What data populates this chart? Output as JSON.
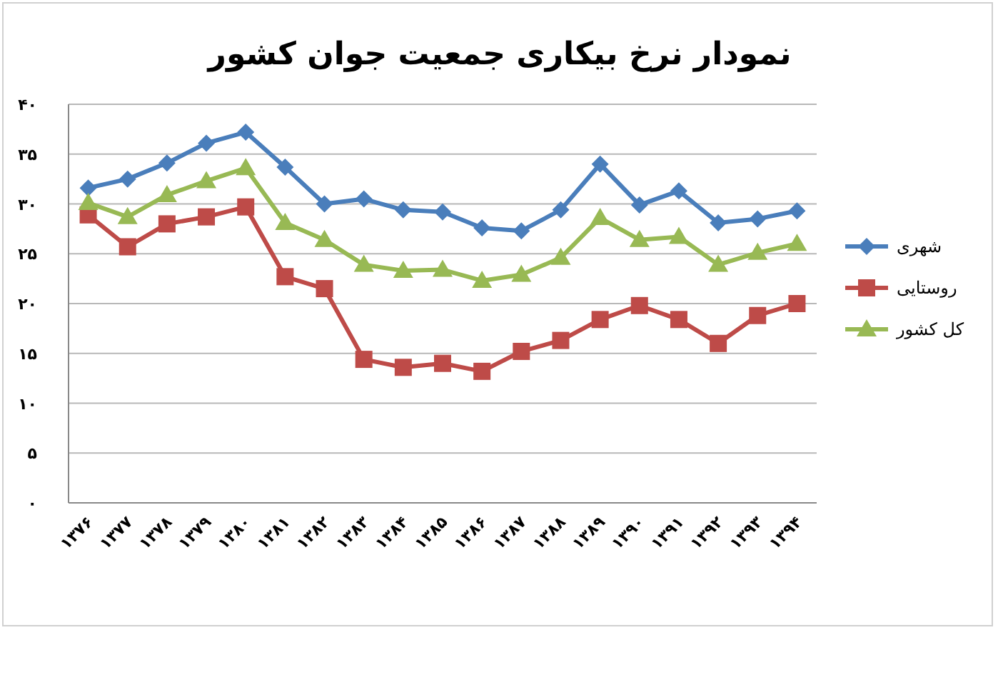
{
  "chart_data": {
    "type": "line",
    "title": "نمودار نرخ بیکاری جمعیت جوان کشور",
    "categories": [
      "۱۳۷۶",
      "۱۳۷۷",
      "۱۳۷۸",
      "۱۳۷۹",
      "۱۳۸۰",
      "۱۳۸۱",
      "۱۳۸۲",
      "۱۳۸۳",
      "۱۳۸۴",
      "۱۳۸۵",
      "۱۳۸۶",
      "۱۳۸۷",
      "۱۳۸۸",
      "۱۳۸۹",
      "۱۳۹۰",
      "۱۳۹۱",
      "۱۳۹۲",
      "۱۳۹۳",
      "۱۳۹۴"
    ],
    "series": [
      {
        "name": "شهری",
        "color": "#4a7ebb",
        "marker": "diamond",
        "values": [
          31.6,
          32.5,
          34.1,
          36.1,
          37.2,
          33.7,
          30.0,
          30.5,
          29.4,
          29.2,
          27.6,
          27.3,
          29.4,
          34.0,
          29.9,
          31.3,
          28.1,
          28.5,
          29.3
        ]
      },
      {
        "name": "روستایی",
        "color": "#be4b48",
        "marker": "square",
        "values": [
          28.9,
          25.7,
          28.0,
          28.7,
          29.7,
          22.7,
          21.5,
          14.4,
          13.6,
          14.0,
          13.2,
          15.2,
          16.3,
          18.4,
          19.8,
          18.4,
          16.0,
          18.8,
          20.0
        ]
      },
      {
        "name": "کل کشور",
        "color": "#98b954",
        "marker": "triangle",
        "values": [
          30.1,
          28.7,
          30.9,
          32.3,
          33.6,
          28.1,
          26.4,
          23.9,
          23.3,
          23.4,
          22.3,
          22.9,
          24.6,
          28.6,
          26.4,
          26.7,
          23.9,
          25.1,
          26.0
        ]
      }
    ],
    "ylim": [
      0,
      40
    ],
    "yticks": [
      {
        "value": 0,
        "label": "۰"
      },
      {
        "value": 5,
        "label": "۵"
      },
      {
        "value": 10,
        "label": "۱۰"
      },
      {
        "value": 15,
        "label": "۱۵"
      },
      {
        "value": 20,
        "label": "۲۰"
      },
      {
        "value": 25,
        "label": "۲۵"
      },
      {
        "value": 30,
        "label": "۳۰"
      },
      {
        "value": 35,
        "label": "۳۵"
      },
      {
        "value": 40,
        "label": "۴۰"
      }
    ],
    "grid": "y",
    "legend": "right",
    "line_style": "solid"
  }
}
